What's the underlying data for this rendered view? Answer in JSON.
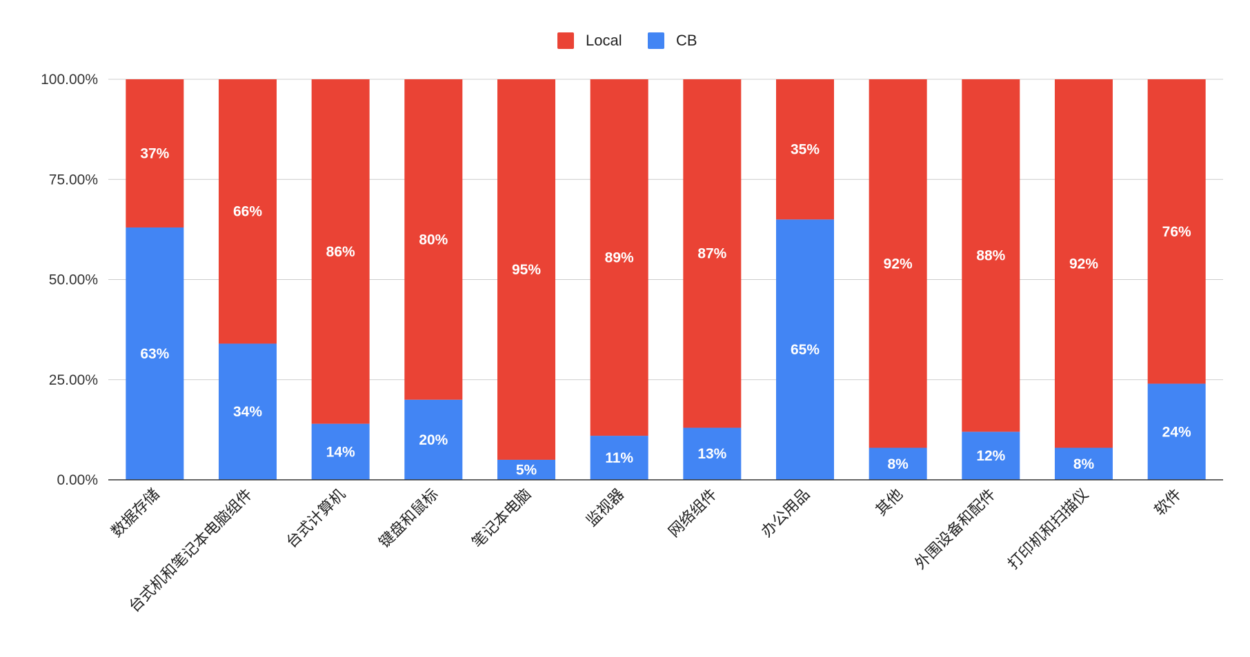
{
  "chart_data": {
    "type": "bar",
    "stacked": true,
    "orientation": "vertical",
    "categories": [
      "数据存储",
      "台式机和笔记本电脑组件",
      "台式计算机",
      "键盘和鼠标",
      "笔记本电脑",
      "监视器",
      "网络组件",
      "办公用品",
      "其他",
      "外围设备和配件",
      "打印机和扫描仪",
      "软件"
    ],
    "series": [
      {
        "name": "CB",
        "color": "#4285f4",
        "values": [
          63,
          34,
          14,
          20,
          5,
          11,
          13,
          65,
          8,
          12,
          8,
          24
        ],
        "labels": [
          "63%",
          "34%",
          "14%",
          "20%",
          "5%",
          "11%",
          "13%",
          "65%",
          "8%",
          "12%",
          "8%",
          "24%"
        ]
      },
      {
        "name": "Local",
        "color": "#ea4335",
        "values": [
          37,
          66,
          86,
          80,
          95,
          89,
          87,
          35,
          92,
          88,
          92,
          76
        ],
        "labels": [
          "37%",
          "66%",
          "86%",
          "80%",
          "95%",
          "89%",
          "87%",
          "35%",
          "92%",
          "88%",
          "92%",
          ""
        ]
      }
    ],
    "legend": {
      "position": "top-center",
      "items": [
        {
          "name": "Local",
          "color": "#ea4335"
        },
        {
          "name": "CB",
          "color": "#4285f4"
        }
      ]
    },
    "y_ticks": [
      "0.00%",
      "25.00%",
      "50.00%",
      "75.00%",
      "100.00%"
    ],
    "ylim": [
      0,
      100
    ],
    "grid": true,
    "title": "",
    "xlabel": "",
    "ylabel": ""
  },
  "extra_labels": {
    "software_local": "76%"
  }
}
